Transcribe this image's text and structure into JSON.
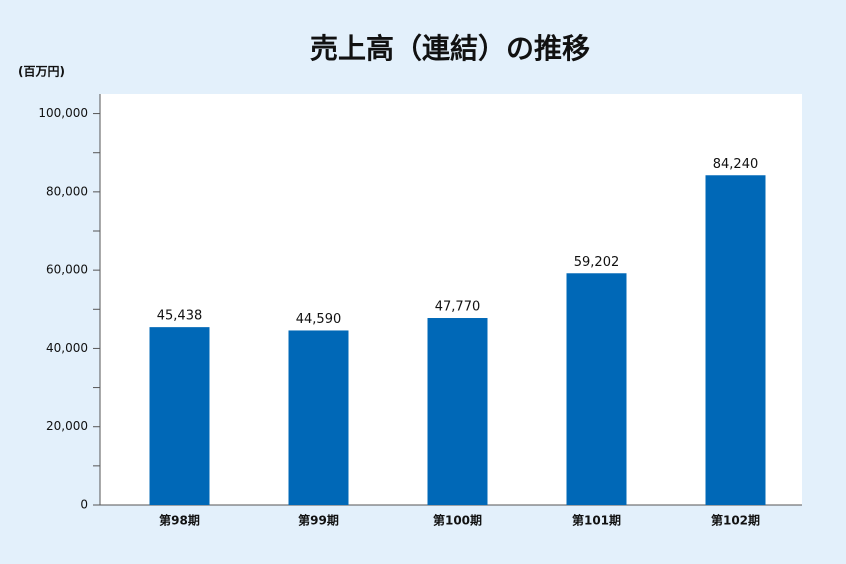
{
  "chart_data": {
    "type": "bar",
    "title": "売上高（連結）の推移",
    "y_unit": "(百万円)",
    "categories": [
      "第98期",
      "第99期",
      "第100期",
      "第101期",
      "第102期"
    ],
    "values": [
      45438,
      44590,
      47770,
      59202,
      84240
    ],
    "value_labels": [
      "45,438",
      "44,590",
      "47,770",
      "59,202",
      "84,240"
    ],
    "color": "#0068b7",
    "ylim": [
      0,
      105000
    ],
    "yticks": [
      0,
      {
        "value": 20000,
        "label": "20,000"
      },
      {
        "value": 40000,
        "label": "40,000"
      },
      {
        "value": 60000,
        "label": "60,000"
      },
      {
        "value": 80000,
        "label": "80,000"
      },
      {
        "value": 100000,
        "label": "100,000"
      }
    ],
    "minor_yticks": [
      10000,
      30000,
      50000,
      70000,
      90000
    ]
  }
}
